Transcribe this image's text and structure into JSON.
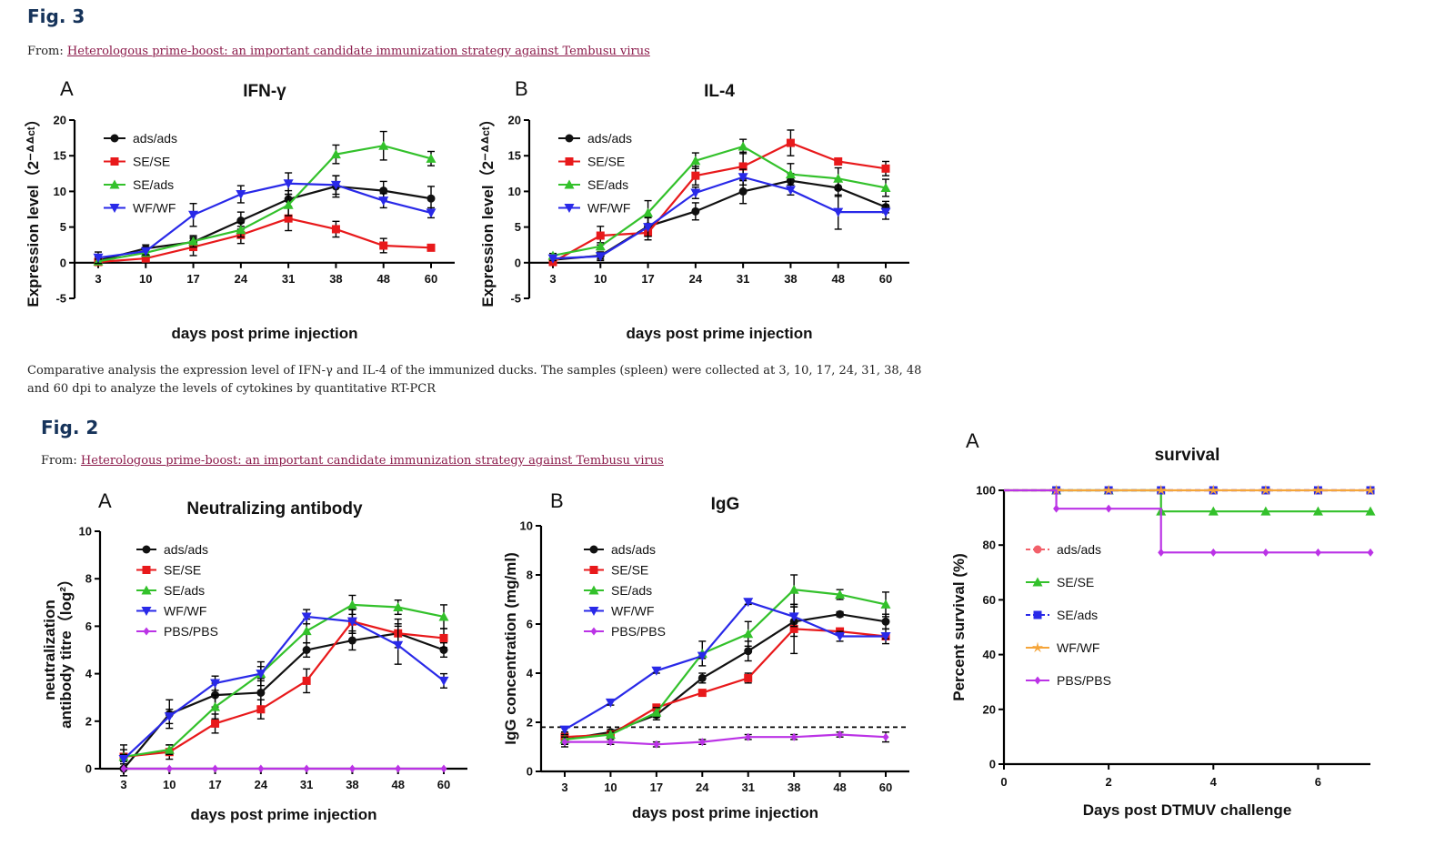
{
  "fig3": {
    "title": "Fig. 3",
    "from_prefix": "From:",
    "from_link": "Heterologous prime-boost: an important candidate immunization strategy against Tembusu virus",
    "caption": "Comparative analysis the expression level of IFN-γ and IL-4 of the immunized ducks. The samples (spleen) were collected at 3, 10, 17, 24, 31, 38, 48 and 60 dpi to analyze the levels of cytokines by quantitative RT-PCR"
  },
  "fig2": {
    "title": "Fig. 2",
    "from_prefix": "From:",
    "from_link": "Heterologous prime-boost: an important candidate immunization strategy against Tembusu virus"
  },
  "colors": {
    "black": "#111111",
    "red": "#e8191b",
    "green": "#33c12b",
    "blue": "#2929e8",
    "purple": "#bb33e6",
    "orange": "#f5a53a",
    "heading": "#16335a",
    "link": "#8b1a4a"
  },
  "chart_data": [
    {
      "id": "ifn",
      "type": "line",
      "panel": "A",
      "title": "IFN-γ",
      "xlabel": "days post prime injection",
      "ylabel": "Expression level（2⁻ᐞᐞᶜᵗ）",
      "categories": [
        "3",
        "10",
        "17",
        "24",
        "31",
        "38",
        "48",
        "60"
      ],
      "ylim": [
        -5,
        20
      ],
      "yticks": [
        -5,
        0,
        5,
        10,
        15,
        20
      ],
      "legend_position": "top-left",
      "series": [
        {
          "name": "ads/ads",
          "color": "#111111",
          "marker": "circle",
          "values": [
            0.3,
            2.0,
            2.9,
            5.9,
            8.9,
            10.7,
            10.1,
            9.0
          ],
          "errors": [
            0.5,
            0.5,
            0.7,
            1.2,
            1.2,
            1.5,
            1.3,
            1.7
          ]
        },
        {
          "name": "SE/SE",
          "color": "#e8191b",
          "marker": "square",
          "values": [
            0.1,
            0.6,
            2.2,
            3.9,
            6.2,
            4.7,
            2.4,
            2.1
          ],
          "errors": [
            0.3,
            0.4,
            1.2,
            1.2,
            1.7,
            1.1,
            1.0,
            0.3
          ]
        },
        {
          "name": "SE/ads",
          "color": "#33c12b",
          "marker": "triangle",
          "values": [
            0.2,
            1.4,
            3.0,
            4.6,
            8.1,
            15.2,
            16.4,
            14.6
          ],
          "errors": [
            0.3,
            0.5,
            0.8,
            1.0,
            1.5,
            1.3,
            2.0,
            1.0
          ]
        },
        {
          "name": "WF/WF",
          "color": "#2929e8",
          "marker": "triangle-down",
          "values": [
            0.7,
            1.6,
            6.7,
            9.6,
            11.1,
            10.9,
            8.7,
            7.0
          ],
          "errors": [
            0.8,
            0.5,
            1.6,
            1.2,
            1.5,
            1.3,
            1.0,
            0.7
          ]
        }
      ]
    },
    {
      "id": "il4",
      "type": "line",
      "panel": "B",
      "title": "IL-4",
      "xlabel": "days post prime injection",
      "ylabel": "Expression level（2⁻ᐞᐞᶜᵗ）",
      "categories": [
        "3",
        "10",
        "17",
        "24",
        "31",
        "38",
        "48",
        "60"
      ],
      "ylim": [
        -5,
        20
      ],
      "yticks": [
        -5,
        0,
        5,
        10,
        15,
        20
      ],
      "legend_position": "top-left",
      "series": [
        {
          "name": "ads/ads",
          "color": "#111111",
          "marker": "circle",
          "values": [
            0.4,
            1.0,
            5.1,
            7.2,
            10.0,
            11.5,
            10.5,
            7.8
          ],
          "errors": [
            0.3,
            0.5,
            1.3,
            1.2,
            1.7,
            1.0,
            1.2,
            0.8
          ]
        },
        {
          "name": "SE/SE",
          "color": "#e8191b",
          "marker": "square",
          "values": [
            0.1,
            3.8,
            4.2,
            12.2,
            13.5,
            16.8,
            14.2,
            13.2
          ],
          "errors": [
            0.3,
            1.3,
            1.0,
            1.3,
            2.0,
            1.8,
            0.4,
            1.0
          ]
        },
        {
          "name": "SE/ads",
          "color": "#33c12b",
          "marker": "triangle",
          "values": [
            1.0,
            2.3,
            7.0,
            14.3,
            16.3,
            12.4,
            11.8,
            10.5
          ],
          "errors": [
            0.3,
            0.5,
            1.7,
            1.1,
            1.0,
            1.5,
            1.5,
            1.2
          ]
        },
        {
          "name": "WF/WF",
          "color": "#2929e8",
          "marker": "triangle-down",
          "values": [
            0.6,
            0.9,
            5.0,
            9.8,
            12.0,
            10.2,
            7.1,
            7.1
          ],
          "errors": [
            0.3,
            0.6,
            1.3,
            0.8,
            1.1,
            0.7,
            2.4,
            1.0
          ]
        }
      ]
    },
    {
      "id": "neut",
      "type": "line",
      "panel": "A",
      "title": "Neutralizing antibody",
      "xlabel": "days post prime injection",
      "ylabel_line1": "neutralization",
      "ylabel_line2": "antibody titre（log²）",
      "categories": [
        "3",
        "10",
        "17",
        "24",
        "31",
        "38",
        "48",
        "60"
      ],
      "ylim": [
        0,
        10
      ],
      "yticks": [
        0,
        2,
        4,
        6,
        8,
        10
      ],
      "legend_position": "top-left",
      "series": [
        {
          "name": "ads/ads",
          "color": "#111111",
          "marker": "circle",
          "values": [
            0.0,
            2.3,
            3.1,
            3.2,
            5.0,
            5.4,
            5.7,
            5.0
          ],
          "errors": [
            0.3,
            0.6,
            0.5,
            0.6,
            0.3,
            0.4,
            0.6,
            0.3
          ]
        },
        {
          "name": "SE/SE",
          "color": "#e8191b",
          "marker": "square",
          "values": [
            0.5,
            0.7,
            1.9,
            2.5,
            3.7,
            6.2,
            5.7,
            5.5
          ],
          "errors": [
            0.5,
            0.3,
            0.4,
            0.4,
            0.5,
            0.5,
            0.4,
            0.4
          ]
        },
        {
          "name": "SE/ads",
          "color": "#33c12b",
          "marker": "triangle",
          "values": [
            0.5,
            0.8,
            2.6,
            4.0,
            5.8,
            6.9,
            6.8,
            6.4
          ],
          "errors": [
            0.3,
            0.2,
            0.5,
            0.5,
            0.5,
            0.4,
            0.3,
            0.5
          ]
        },
        {
          "name": "WF/WF",
          "color": "#2929e8",
          "marker": "triangle-down",
          "values": [
            0.4,
            2.2,
            3.6,
            4.0,
            6.4,
            6.2,
            5.2,
            3.7
          ],
          "errors": [
            0.2,
            0.3,
            0.3,
            0.3,
            0.3,
            0.5,
            0.8,
            0.3
          ]
        },
        {
          "name": "PBS/PBS",
          "color": "#bb33e6",
          "marker": "diamond",
          "values": [
            0.0,
            0.0,
            0.0,
            0.0,
            0.0,
            0.0,
            0.0,
            0.0
          ],
          "errors": [
            0,
            0,
            0,
            0,
            0,
            0,
            0,
            0
          ]
        }
      ]
    },
    {
      "id": "igg",
      "type": "line",
      "panel": "B",
      "title": "IgG",
      "xlabel": "days post prime injection",
      "ylabel": "IgG concentration (mg/ml)",
      "categories": [
        "3",
        "10",
        "17",
        "24",
        "31",
        "38",
        "48",
        "60"
      ],
      "ylim": [
        0,
        10
      ],
      "yticks": [
        0,
        2,
        4,
        6,
        8,
        10
      ],
      "threshold": 1.8,
      "legend_position": "top-left",
      "series": [
        {
          "name": "ads/ads",
          "color": "#111111",
          "marker": "circle",
          "values": [
            1.3,
            1.6,
            2.3,
            3.8,
            4.9,
            6.1,
            6.4,
            6.1
          ],
          "errors": [
            0.2,
            0.1,
            0.2,
            0.2,
            0.4,
            0.6,
            0.1,
            0.3
          ]
        },
        {
          "name": "SE/SE",
          "color": "#e8191b",
          "marker": "square",
          "values": [
            1.4,
            1.5,
            2.6,
            3.2,
            3.8,
            5.8,
            5.7,
            5.5
          ],
          "errors": [
            0.2,
            0.1,
            0.1,
            0.1,
            0.2,
            1.0,
            0.1,
            0.3
          ]
        },
        {
          "name": "SE/ads",
          "color": "#33c12b",
          "marker": "triangle",
          "values": [
            1.3,
            1.5,
            2.4,
            4.8,
            5.6,
            7.4,
            7.2,
            6.8
          ],
          "errors": [
            0.2,
            0.1,
            0.2,
            0.5,
            0.5,
            0.6,
            0.2,
            0.5
          ]
        },
        {
          "name": "WF/WF",
          "color": "#2929e8",
          "marker": "triangle-down",
          "values": [
            1.7,
            2.8,
            4.1,
            4.7,
            6.9,
            6.3,
            5.5,
            5.5
          ],
          "errors": [
            0.1,
            0.1,
            0.1,
            0.1,
            0.1,
            0.4,
            0.2,
            0.1
          ]
        },
        {
          "name": "PBS/PBS",
          "color": "#bb33e6",
          "marker": "diamond",
          "values": [
            1.2,
            1.2,
            1.1,
            1.2,
            1.4,
            1.4,
            1.5,
            1.4
          ],
          "errors": [
            0.2,
            0.1,
            0.1,
            0.1,
            0.1,
            0.1,
            0.1,
            0.2
          ]
        }
      ]
    },
    {
      "id": "surv",
      "type": "line",
      "step": true,
      "panel": "A",
      "title": "survival",
      "xlabel": "Days post DTMUV challenge",
      "ylabel": "Percent survival (%)",
      "xlim": [
        0,
        7
      ],
      "xticks": [
        0,
        2,
        4,
        6
      ],
      "ylim": [
        0,
        100
      ],
      "yticks": [
        0,
        20,
        40,
        60,
        80,
        100
      ],
      "legend_position": "left",
      "series": [
        {
          "name": "ads/ads",
          "color": "#f2606a",
          "marker": "circle",
          "dashed": true,
          "x": [
            0,
            1,
            2,
            3,
            4,
            5,
            6,
            7
          ],
          "values": [
            100,
            100,
            100,
            100,
            100,
            100,
            100,
            100
          ]
        },
        {
          "name": "SE/SE",
          "color": "#33c12b",
          "marker": "triangle",
          "x": [
            0,
            1,
            2,
            3,
            4,
            5,
            6,
            7
          ],
          "values": [
            100,
            100,
            100,
            92.3,
            92.3,
            92.3,
            92.3,
            92.3
          ]
        },
        {
          "name": "SE/ads",
          "color": "#2929e8",
          "marker": "square",
          "dashed": true,
          "x": [
            0,
            1,
            2,
            3,
            4,
            5,
            6,
            7
          ],
          "values": [
            100,
            100,
            100,
            100,
            100,
            100,
            100,
            100
          ]
        },
        {
          "name": "WF/WF",
          "color": "#f5a53a",
          "marker": "star",
          "x": [
            0,
            1,
            2,
            3,
            4,
            5,
            6,
            7
          ],
          "values": [
            100,
            100,
            100,
            100,
            100,
            100,
            100,
            100
          ]
        },
        {
          "name": "PBS/PBS",
          "color": "#bb33e6",
          "marker": "diamond",
          "x": [
            0,
            1,
            2,
            3,
            4,
            5,
            6,
            7
          ],
          "values": [
            100,
            93.3,
            93.3,
            77.3,
            77.3,
            77.3,
            77.3,
            77.3
          ]
        }
      ]
    }
  ]
}
